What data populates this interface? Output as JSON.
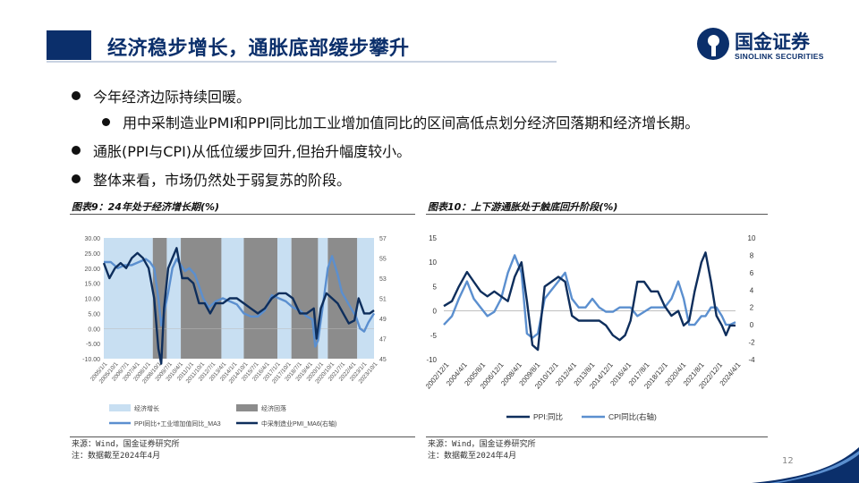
{
  "header": {
    "title": "经济稳步增长，通胀底部缓步攀升",
    "logo_cn": "国金证券",
    "logo_en": "SINOLINK SECURITIES"
  },
  "bullets": [
    "今年经济边际持续回暖。",
    "用中采制造业PMI和PPI同比加工业增加值同比的区间高低点划分经济回落期和经济增长期。",
    "通胀(PPI与CPI)从低位缓步回升,但抬升幅度较小。",
    "整体来看，市场仍然处于弱复苏的阶段。"
  ],
  "figure9": {
    "heading": "图表9：24年处于经济增长期(%)",
    "source": "来源：Wind，国金证券研究所",
    "note": "注：数据截至2024年4月",
    "legend": {
      "growth": "经济增长",
      "decline": "经济回落",
      "series1": "PPI同比+工业增加值同比_MA3",
      "series2": "中采制造业PMI_MA6(右轴)"
    },
    "colors": {
      "growth": "#c8dff2",
      "decline": "#8c8c8c",
      "series1": "#5b8fcf",
      "series2": "#0e2e5c"
    }
  },
  "figure10": {
    "heading": "图表10：上下游通胀处于触底回升阶段(%)",
    "source": "来源：Wind，国金证券研究所",
    "note": "注：数据截至2024年4月",
    "legend": {
      "series1": "PPI:同比",
      "series2": "CPI同比(右轴)"
    },
    "colors": {
      "series1": "#0e2e5c",
      "series2": "#5b8fcf"
    }
  },
  "page_number": "12",
  "chart_data": [
    {
      "type": "line",
      "title": "图表9：24年处于经济增长期(%)",
      "y_left": {
        "ticks": [
          "30.00",
          "25.00",
          "20.00",
          "15.00",
          "10.00",
          "5.00",
          "0.00",
          "-5.00",
          "-10.00"
        ],
        "ylim": [
          -10,
          30
        ]
      },
      "y_right": {
        "ticks": [
          "57",
          "55",
          "53",
          "51",
          "49",
          "47",
          "45"
        ],
        "ylim": [
          45,
          57
        ]
      },
      "x_ticks": [
        "2005/1/1",
        "2005/10/1",
        "2006/7/1",
        "2007/4/1",
        "2008/1/1",
        "2008/10/1",
        "2009/7/1",
        "2010/4/1",
        "2011/1/1",
        "2011/10/1",
        "2012/7/1",
        "2013/4/1",
        "2014/1/1",
        "2014/10/1",
        "2015/7/1",
        "2016/4/1",
        "2017/1/1",
        "2017/10/1",
        "2018/7/1",
        "2019/4/1",
        "2020/1/1",
        "2020/10/1",
        "2021/7/1",
        "2022/4/1",
        "2023/1/1",
        "2023/10/1"
      ],
      "x_range": [
        2005.0,
        2024.3
      ],
      "periods": [
        {
          "kind": "growth",
          "start": 2005.0,
          "end": 2008.5
        },
        {
          "kind": "decline",
          "start": 2008.5,
          "end": 2009.5
        },
        {
          "kind": "growth",
          "start": 2009.5,
          "end": 2010.5
        },
        {
          "kind": "decline",
          "start": 2010.5,
          "end": 2013.4
        },
        {
          "kind": "growth",
          "start": 2013.4,
          "end": 2015.0
        },
        {
          "kind": "decline",
          "start": 2015.0,
          "end": 2017.4
        },
        {
          "kind": "growth",
          "start": 2017.4,
          "end": 2018.4
        },
        {
          "kind": "decline",
          "start": 2018.4,
          "end": 2020.3
        },
        {
          "kind": "growth",
          "start": 2020.3,
          "end": 2021.0
        },
        {
          "kind": "decline",
          "start": 2021.0,
          "end": 2023.1
        },
        {
          "kind": "growth",
          "start": 2023.1,
          "end": 2024.3
        }
      ],
      "series": [
        {
          "name": "PPI同比+工业增加值同比_MA3",
          "axis": "left",
          "x": [
            2005.0,
            2005.5,
            2006.0,
            2006.5,
            2007.0,
            2007.5,
            2008.0,
            2008.3,
            2008.6,
            2008.9,
            2009.1,
            2009.3,
            2009.6,
            2009.9,
            2010.2,
            2010.5,
            2010.8,
            2011.1,
            2011.5,
            2011.8,
            2012.1,
            2012.5,
            2013.0,
            2013.5,
            2014.0,
            2014.5,
            2015.0,
            2015.5,
            2016.0,
            2016.5,
            2017.0,
            2017.5,
            2018.0,
            2018.5,
            2019.0,
            2019.5,
            2019.9,
            2020.1,
            2020.3,
            2020.6,
            2021.0,
            2021.3,
            2021.7,
            2022.0,
            2022.5,
            2023.0,
            2023.3,
            2023.6,
            2023.9,
            2024.3
          ],
          "y": [
            22,
            22,
            20,
            21,
            21,
            22,
            23,
            22,
            20,
            10,
            1,
            5,
            12,
            20,
            23,
            21,
            19,
            20,
            18,
            14,
            10,
            7,
            9,
            10,
            9,
            8,
            5,
            4,
            4,
            6,
            11,
            10,
            9,
            7,
            6,
            4,
            3,
            -6,
            -4,
            6,
            20,
            24,
            18,
            12,
            8,
            4,
            0,
            -1,
            2,
            5
          ]
        },
        {
          "name": "中采制造业PMI_MA6(右轴)",
          "axis": "right",
          "x": [
            2005.0,
            2005.4,
            2005.8,
            2006.2,
            2006.6,
            2007.0,
            2007.4,
            2007.8,
            2008.2,
            2008.6,
            2008.9,
            2009.1,
            2009.3,
            2009.6,
            2009.9,
            2010.2,
            2010.6,
            2011.0,
            2011.4,
            2011.8,
            2012.2,
            2012.6,
            2013.0,
            2013.5,
            2014.0,
            2014.5,
            2015.0,
            2015.5,
            2016.0,
            2016.5,
            2017.0,
            2017.5,
            2018.0,
            2018.5,
            2019.0,
            2019.5,
            2020.0,
            2020.2,
            2020.5,
            2020.9,
            2021.3,
            2021.7,
            2022.1,
            2022.5,
            2022.9,
            2023.2,
            2023.6,
            2024.0,
            2024.3
          ],
          "y": [
            54.5,
            53,
            54,
            54.5,
            54,
            55,
            55.5,
            55,
            54,
            51,
            46,
            44.5,
            50,
            54,
            55,
            56,
            53,
            53,
            52.5,
            50.5,
            50.5,
            49.5,
            50.5,
            50.5,
            51,
            51,
            50.5,
            50,
            49.5,
            50,
            51,
            51.5,
            51.5,
            51,
            49.5,
            49.5,
            50,
            47,
            50,
            51.5,
            51,
            50.5,
            49.5,
            48.5,
            48.8,
            51,
            49.5,
            49.5,
            49.8
          ]
        }
      ]
    },
    {
      "type": "line",
      "title": "图表10：上下游通胀处于触底回升阶段(%)",
      "y_left": {
        "ticks": [
          "15",
          "10",
          "5",
          "0",
          "-5",
          "-10"
        ],
        "ylim": [
          -10,
          15
        ]
      },
      "y_right": {
        "ticks": [
          "10",
          "8",
          "6",
          "4",
          "2",
          "0",
          "-2",
          "-4"
        ],
        "ylim": [
          -4,
          10
        ]
      },
      "x_ticks": [
        "2002/12/1",
        "2004/4/1",
        "2005/8/1",
        "2006/12/1",
        "2008/4/1",
        "2009/8/1",
        "2010/12/1",
        "2012/4/1",
        "2013/8/1",
        "2014/12/1",
        "2016/4/1",
        "2017/8/1",
        "2018/12/1",
        "2020/4/1",
        "2021/8/1",
        "2022/12/1",
        "2024/4/1"
      ],
      "x_range": [
        2002.9,
        2024.3
      ],
      "series": [
        {
          "name": "PPI:同比",
          "axis": "left",
          "x": [
            2002.9,
            2003.5,
            2004.0,
            2004.6,
            2005.1,
            2005.6,
            2006.1,
            2006.6,
            2007.1,
            2007.6,
            2008.1,
            2008.6,
            2009.0,
            2009.4,
            2009.8,
            2010.3,
            2010.8,
            2011.3,
            2011.8,
            2012.3,
            2012.8,
            2013.3,
            2013.8,
            2014.3,
            2014.8,
            2015.3,
            2015.8,
            2016.2,
            2016.6,
            2017.1,
            2017.6,
            2018.1,
            2018.6,
            2019.1,
            2019.6,
            2020.1,
            2020.5,
            2020.9,
            2021.3,
            2021.8,
            2022.1,
            2022.5,
            2022.9,
            2023.3,
            2023.6,
            2023.9,
            2024.3
          ],
          "y": [
            1,
            2,
            5,
            8,
            6,
            4,
            3,
            4,
            3,
            2,
            7,
            10,
            2,
            -7,
            -8,
            5,
            6,
            7,
            6,
            -1,
            -2,
            -2,
            -2,
            -2,
            -3,
            -5,
            -6,
            -5,
            -2,
            6,
            6,
            4,
            4,
            1,
            -1,
            0,
            -3,
            -2,
            4,
            10,
            12,
            6,
            -1,
            -3,
            -5,
            -3,
            -3
          ]
        },
        {
          "name": "CPI同比(右轴)",
          "axis": "right",
          "x": [
            2002.9,
            2003.5,
            2004.0,
            2004.6,
            2005.1,
            2005.6,
            2006.1,
            2006.6,
            2007.1,
            2007.6,
            2008.1,
            2008.6,
            2009.0,
            2009.4,
            2009.8,
            2010.3,
            2010.8,
            2011.3,
            2011.8,
            2012.3,
            2012.8,
            2013.3,
            2013.8,
            2014.3,
            2014.8,
            2015.3,
            2015.8,
            2016.2,
            2016.6,
            2017.1,
            2017.6,
            2018.1,
            2018.6,
            2019.1,
            2019.6,
            2020.1,
            2020.5,
            2020.9,
            2021.3,
            2021.8,
            2022.1,
            2022.5,
            2022.9,
            2023.3,
            2023.6,
            2023.9,
            2024.3
          ],
          "y": [
            0,
            1,
            3,
            5,
            3,
            2,
            1,
            1.5,
            3,
            6,
            8,
            6,
            -1,
            -1.5,
            -1,
            3,
            4,
            5,
            6,
            3,
            2,
            2,
            3,
            2,
            1.5,
            1.5,
            2,
            2,
            2,
            1,
            1.5,
            2,
            2,
            2,
            3,
            5,
            3,
            0,
            0,
            1,
            1,
            2,
            2,
            1,
            0,
            0,
            0.3
          ]
        }
      ]
    }
  ]
}
